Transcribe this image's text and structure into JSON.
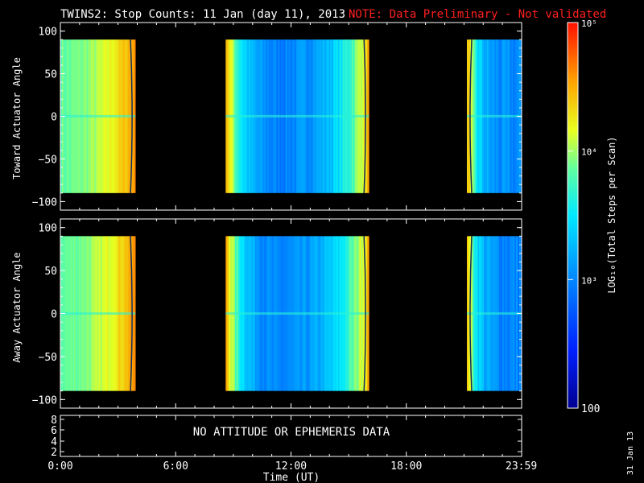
{
  "header": {
    "title": "TWINS2: Stop Counts: 11 Jan (day  11), 2013",
    "note": "NOTE: Data Preliminary - Not validated",
    "note_color": "#ff2020"
  },
  "chart_data": [
    {
      "type": "heatmap",
      "panel": "top",
      "ylabel": "Toward Actuator Angle",
      "ylim": [
        -110,
        110
      ],
      "yticks": [
        100,
        50,
        0,
        -50,
        -100
      ],
      "y_range_data": [
        -90,
        90
      ],
      "xlim_hours": [
        0,
        24
      ],
      "data_blocks_hours": [
        [
          0.0,
          3.9
        ],
        [
          8.6,
          16.05
        ],
        [
          21.15,
          24.0
        ]
      ],
      "descriptor": "yellow-orange at block edges, blue-cyan in middle of central block"
    },
    {
      "type": "heatmap",
      "panel": "middle",
      "ylabel": "Away Actuator Angle",
      "ylim": [
        -110,
        110
      ],
      "yticks": [
        100,
        50,
        0,
        -50,
        -100
      ],
      "y_range_data": [
        -90,
        90
      ],
      "xlim_hours": [
        0,
        24
      ],
      "data_blocks_hours": [
        [
          0.0,
          3.9
        ],
        [
          8.6,
          16.05
        ],
        [
          21.15,
          24.0
        ]
      ]
    },
    {
      "type": "table",
      "panel": "bottom",
      "yticks": [
        "8",
        "6",
        "4",
        "2"
      ],
      "message": "NO ATTITUDE OR EPHEMERIS DATA"
    }
  ],
  "xaxis": {
    "ticks": [
      {
        "hour": 0,
        "label": "0:00"
      },
      {
        "hour": 6,
        "label": "6:00"
      },
      {
        "hour": 12,
        "label": "12:00"
      },
      {
        "hour": 18,
        "label": "18:00"
      },
      {
        "hour": 23.983,
        "label": "23:59"
      }
    ],
    "label": "Time (UT)"
  },
  "colorbar": {
    "label": "LOG₁₀(Total Steps per Scan)",
    "ticks": [
      {
        "value": 100000,
        "label": "10⁵"
      },
      {
        "value": 10000,
        "label": "10⁴"
      },
      {
        "value": 1000,
        "label": "10³"
      },
      {
        "value": 100,
        "label": "100"
      }
    ],
    "range": [
      100,
      100000
    ]
  },
  "footer": {
    "date_stamp": "31 Jan 13"
  }
}
